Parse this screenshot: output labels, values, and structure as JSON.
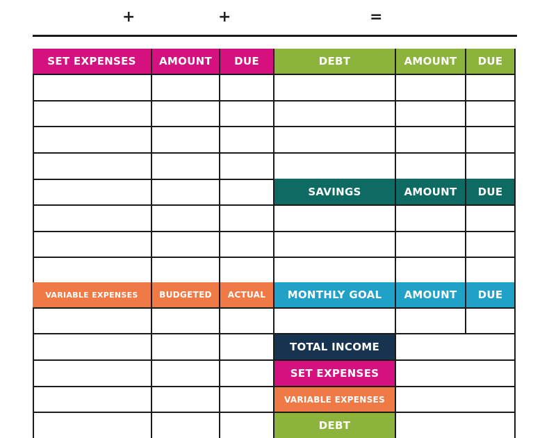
{
  "equation": {
    "plus1": "+",
    "plus2": "+",
    "equals": "="
  },
  "set_expenses": {
    "label": "SET EXPENSES",
    "amount": "AMOUNT",
    "due": "DUE"
  },
  "debt": {
    "label": "DEBT",
    "amount": "AMOUNT",
    "due": "DUE"
  },
  "savings": {
    "label": "SAVINGS",
    "amount": "AMOUNT",
    "due": "DUE"
  },
  "variable_expenses": {
    "label": "VARIABLE EXPENSES",
    "budgeted": "BUDGETED",
    "actual": "ACTUAL"
  },
  "monthly_goal": {
    "label": "MONTHLY GOAL",
    "amount": "AMOUNT",
    "due": "DUE"
  },
  "summary": {
    "total_income": "TOTAL INCOME",
    "set_expenses": "SET EXPENSES",
    "variable_expenses": "VARIABLE EXPENSES",
    "debt": "DEBT"
  },
  "colors": {
    "pink": "#d4117f",
    "green": "#8cb43c",
    "teal": "#0e6b64",
    "orange": "#ef7a46",
    "blue": "#1fa1c8",
    "navy": "#16344f"
  }
}
